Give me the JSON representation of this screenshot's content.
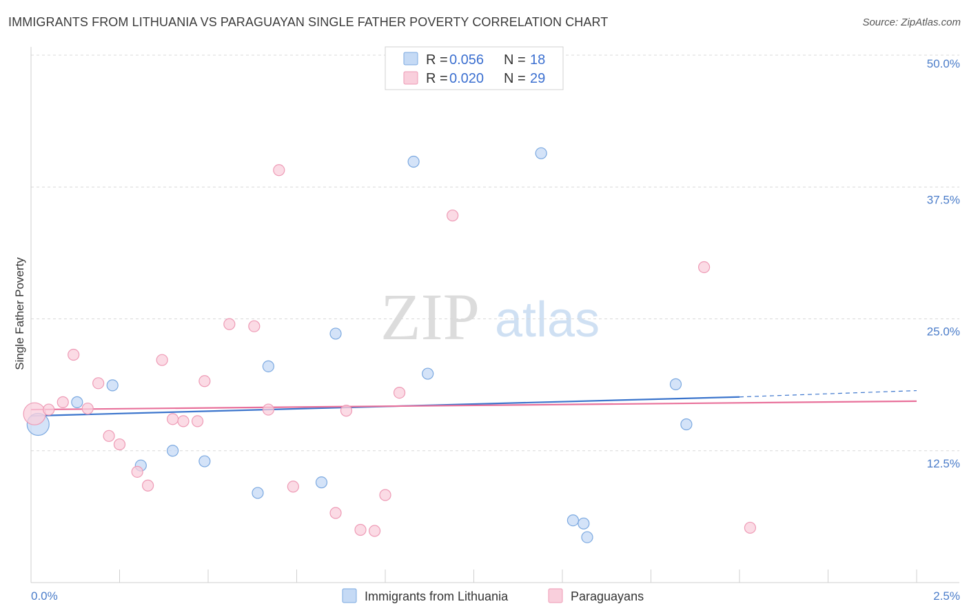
{
  "header": {
    "title": "IMMIGRANTS FROM LITHUANIA VS PARAGUAYAN SINGLE FATHER POVERTY CORRELATION CHART",
    "source": "Source: ZipAtlas.com"
  },
  "watermark": {
    "zip": "ZIP",
    "atlas": "atlas"
  },
  "legend": {
    "rows": [
      {
        "r_label": "R = ",
        "r_value": "0.056",
        "n_label": "N = ",
        "n_value": "18"
      },
      {
        "r_label": "R = ",
        "r_value": "0.020",
        "n_label": "N = ",
        "n_value": "29"
      }
    ]
  },
  "colors": {
    "blue_fill": "#c5daf5",
    "blue_stroke": "#7aa8e0",
    "blue_line": "#3a74cc",
    "pink_fill": "#f9cfdc",
    "pink_stroke": "#ee9ab5",
    "pink_line": "#e8709a",
    "grid": "#d8d8d8",
    "axis_text": "#4a7cc9"
  },
  "chart_data": {
    "type": "scatter",
    "title": "IMMIGRANTS FROM LITHUANIA VS PARAGUAYAN SINGLE FATHER POVERTY CORRELATION CHART",
    "xlabel": "",
    "ylabel": "Single Father Poverty",
    "xlim": [
      0,
      2.5
    ],
    "ylim": [
      0,
      50
    ],
    "x_tick_labels": [
      "0.0%",
      "2.5%"
    ],
    "y_ticks": [
      12.5,
      25.0,
      37.5,
      50.0
    ],
    "y_tick_labels": [
      "12.5%",
      "25.0%",
      "37.5%",
      "50.0%"
    ],
    "series": [
      {
        "name": "Immigrants from Lithuania",
        "color": "blue",
        "r": 0.056,
        "n": 18,
        "points": [
          {
            "x": 0.02,
            "y": 15.0,
            "big": true
          },
          {
            "x": 0.13,
            "y": 17.1
          },
          {
            "x": 0.23,
            "y": 18.7
          },
          {
            "x": 0.31,
            "y": 11.1
          },
          {
            "x": 0.4,
            "y": 12.5
          },
          {
            "x": 0.49,
            "y": 11.5
          },
          {
            "x": 0.64,
            "y": 8.5
          },
          {
            "x": 0.67,
            "y": 20.5
          },
          {
            "x": 0.82,
            "y": 9.5
          },
          {
            "x": 0.86,
            "y": 23.6
          },
          {
            "x": 1.08,
            "y": 39.9
          },
          {
            "x": 1.12,
            "y": 19.8
          },
          {
            "x": 1.44,
            "y": 40.7
          },
          {
            "x": 1.57,
            "y": 4.3
          },
          {
            "x": 1.56,
            "y": 5.6
          },
          {
            "x": 1.53,
            "y": 5.9
          },
          {
            "x": 1.82,
            "y": 18.8
          },
          {
            "x": 1.85,
            "y": 15.0
          }
        ],
        "trend": {
          "x0": 0.0,
          "y0": 15.8,
          "x1": 2.0,
          "y1": 17.6,
          "dash_x1": 2.5,
          "dash_y1": 18.2
        }
      },
      {
        "name": "Paraguayans",
        "color": "pink",
        "r": 0.02,
        "n": 29,
        "points": [
          {
            "x": 0.01,
            "y": 16.0,
            "big": true
          },
          {
            "x": 0.05,
            "y": 16.4
          },
          {
            "x": 0.09,
            "y": 17.1
          },
          {
            "x": 0.12,
            "y": 21.6
          },
          {
            "x": 0.16,
            "y": 16.5
          },
          {
            "x": 0.19,
            "y": 18.9
          },
          {
            "x": 0.22,
            "y": 13.9
          },
          {
            "x": 0.25,
            "y": 13.1
          },
          {
            "x": 0.3,
            "y": 10.5
          },
          {
            "x": 0.33,
            "y": 9.2
          },
          {
            "x": 0.37,
            "y": 21.1
          },
          {
            "x": 0.4,
            "y": 15.5
          },
          {
            "x": 0.43,
            "y": 15.3
          },
          {
            "x": 0.47,
            "y": 15.3
          },
          {
            "x": 0.49,
            "y": 19.1
          },
          {
            "x": 0.56,
            "y": 24.5
          },
          {
            "x": 0.63,
            "y": 24.3
          },
          {
            "x": 0.67,
            "y": 16.4
          },
          {
            "x": 0.7,
            "y": 39.1
          },
          {
            "x": 0.74,
            "y": 9.1
          },
          {
            "x": 0.86,
            "y": 6.6
          },
          {
            "x": 0.89,
            "y": 16.3
          },
          {
            "x": 0.93,
            "y": 5.0
          },
          {
            "x": 0.97,
            "y": 4.9
          },
          {
            "x": 1.0,
            "y": 8.3
          },
          {
            "x": 1.04,
            "y": 18.0
          },
          {
            "x": 1.19,
            "y": 34.8
          },
          {
            "x": 1.9,
            "y": 29.9
          },
          {
            "x": 2.03,
            "y": 5.2
          }
        ],
        "trend": {
          "x0": 0.0,
          "y0": 16.4,
          "x1": 2.5,
          "y1": 17.2
        }
      }
    ]
  },
  "bottom_legend": {
    "items": [
      {
        "label": "Immigrants from Lithuania"
      },
      {
        "label": "Paraguayans"
      }
    ]
  }
}
